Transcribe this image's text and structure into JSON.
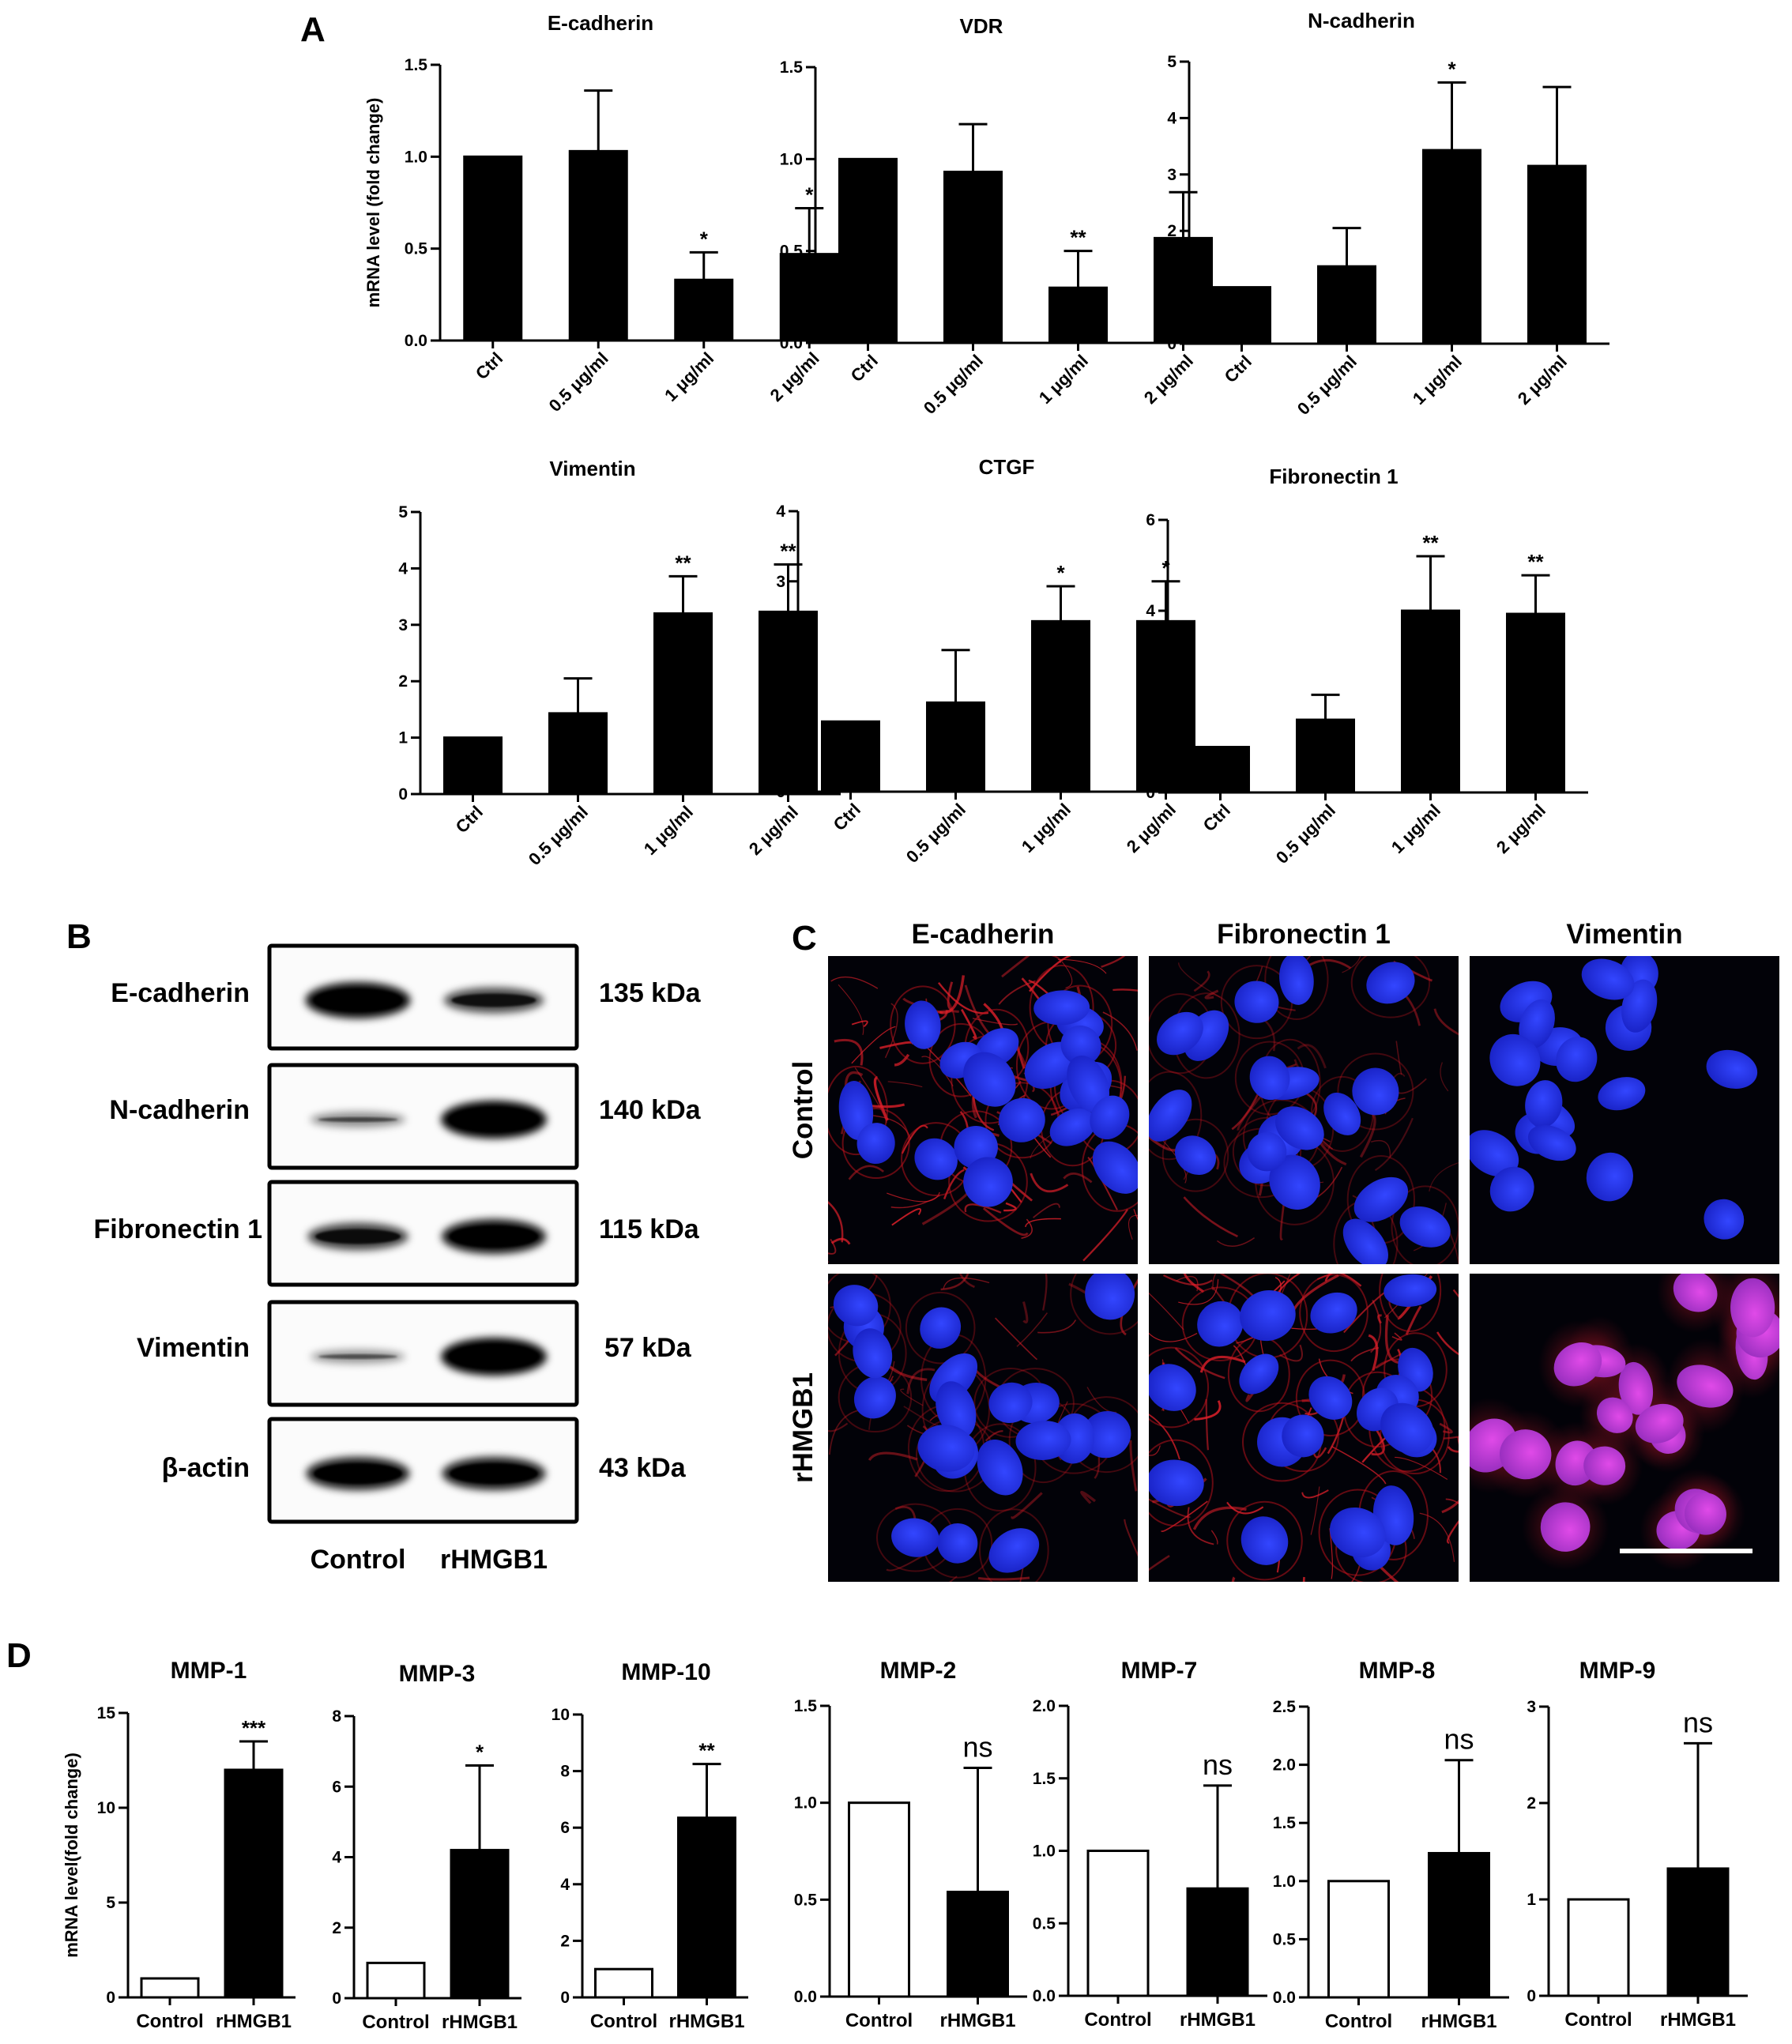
{
  "panel_labels": {
    "a": "A",
    "b": "B",
    "c": "C",
    "d": "D"
  },
  "chart_data": [
    {
      "id": "a-ecad",
      "type": "bar",
      "title": "E-cadherin",
      "ylabel": "mRNA level (fold change)",
      "categories": [
        "Ctrl",
        "0.5 μg/ml",
        "1 μg/ml",
        "2 μg/ml"
      ],
      "values": [
        1.0,
        1.03,
        0.33,
        0.47
      ],
      "errors": [
        0,
        0.33,
        0.15,
        0.25
      ],
      "significance": [
        "",
        "",
        "*",
        "*"
      ],
      "ylim": [
        0,
        1.5
      ],
      "yticks": [
        "0.0",
        "0.5",
        "1.0",
        "1.5"
      ],
      "bar_color": "#000000"
    },
    {
      "id": "a-vdr",
      "type": "bar",
      "title": "VDR",
      "ylabel": "",
      "categories": [
        "Ctrl",
        "0.5 μg/ml",
        "1 μg/ml",
        "2 μg/ml"
      ],
      "values": [
        1.0,
        0.93,
        0.3,
        0.57
      ],
      "errors": [
        0,
        0.26,
        0.2,
        0.25
      ],
      "significance": [
        "",
        "",
        "**",
        ""
      ],
      "ylim": [
        0,
        1.5
      ],
      "yticks": [
        "0.0",
        "0.5",
        "1.0",
        "1.5"
      ],
      "bar_color": "#000000"
    },
    {
      "id": "a-ncad",
      "type": "bar",
      "title": "N-cadherin",
      "ylabel": "",
      "categories": [
        "Ctrl",
        "0.5 μg/ml",
        "1 μg/ml",
        "2 μg/ml"
      ],
      "values": [
        1.0,
        1.37,
        3.43,
        3.15
      ],
      "errors": [
        0,
        0.68,
        1.2,
        1.4
      ],
      "significance": [
        "",
        "",
        "*",
        ""
      ],
      "ylim": [
        0,
        5
      ],
      "yticks": [
        "0",
        "1",
        "2",
        "3",
        "4",
        "5"
      ],
      "bar_color": "#000000"
    },
    {
      "id": "a-vim",
      "type": "bar",
      "title": "Vimentin",
      "ylabel": "",
      "categories": [
        "Ctrl",
        "0.5 μg/ml",
        "1 μg/ml",
        "2 μg/ml"
      ],
      "values": [
        1.0,
        1.43,
        3.2,
        3.23
      ],
      "errors": [
        0,
        0.62,
        0.66,
        0.84
      ],
      "significance": [
        "",
        "",
        "**",
        "**"
      ],
      "ylim": [
        0,
        5
      ],
      "yticks": [
        "0",
        "1",
        "2",
        "3",
        "4",
        "5"
      ],
      "bar_color": "#000000"
    },
    {
      "id": "a-ctgf",
      "type": "bar",
      "title": "CTGF",
      "ylabel": "",
      "categories": [
        "Ctrl",
        "0.5 μg/ml",
        "1 μg/ml",
        "2 μg/ml"
      ],
      "values": [
        1.0,
        1.27,
        2.43,
        2.43
      ],
      "errors": [
        0,
        0.75,
        0.5,
        0.57
      ],
      "significance": [
        "",
        "",
        "*",
        "*"
      ],
      "ylim": [
        0,
        4
      ],
      "yticks": [
        "0",
        "1",
        "2",
        "3",
        "4"
      ],
      "bar_color": "#000000"
    },
    {
      "id": "a-fn1",
      "type": "bar",
      "title": "Fibronectin 1",
      "ylabel": "",
      "categories": [
        "Ctrl",
        "0.5 μg/ml",
        "1 μg/ml",
        "2 μg/ml"
      ],
      "values": [
        1.0,
        1.6,
        4.0,
        3.93
      ],
      "errors": [
        0,
        0.55,
        1.2,
        0.85
      ],
      "significance": [
        "",
        "",
        "**",
        "**"
      ],
      "ylim": [
        0,
        6
      ],
      "yticks": [
        "0",
        "2",
        "4",
        "6"
      ],
      "bar_color": "#000000"
    },
    {
      "id": "d-mmp1",
      "type": "bar",
      "title": "MMP-1",
      "ylabel": "mRNA level(fold change)",
      "categories": [
        "Control",
        "rHMGB1"
      ],
      "values": [
        1.0,
        12.0
      ],
      "errors": [
        0,
        1.5
      ],
      "significance": [
        "",
        "***"
      ],
      "ylim": [
        0,
        15
      ],
      "yticks": [
        "0",
        "5",
        "10",
        "15"
      ],
      "bar_fills": [
        "#ffffff",
        "#000000"
      ]
    },
    {
      "id": "d-mmp3",
      "type": "bar",
      "title": "MMP-3",
      "ylabel": "",
      "categories": [
        "Control",
        "rHMGB1"
      ],
      "values": [
        1.0,
        4.2
      ],
      "errors": [
        0,
        2.4
      ],
      "significance": [
        "",
        "*"
      ],
      "ylim": [
        0,
        8
      ],
      "yticks": [
        "0",
        "2",
        "4",
        "6",
        "8"
      ],
      "bar_fills": [
        "#ffffff",
        "#000000"
      ]
    },
    {
      "id": "d-mmp10",
      "type": "bar",
      "title": "MMP-10",
      "ylabel": "",
      "categories": [
        "Control",
        "rHMGB1"
      ],
      "values": [
        1.0,
        6.35
      ],
      "errors": [
        0,
        1.9
      ],
      "significance": [
        "",
        "**"
      ],
      "ylim": [
        0,
        10
      ],
      "yticks": [
        "0",
        "2",
        "4",
        "6",
        "8",
        "10"
      ],
      "bar_fills": [
        "#ffffff",
        "#000000"
      ]
    },
    {
      "id": "d-mmp2",
      "type": "bar",
      "title": "MMP-2",
      "ylabel": "",
      "categories": [
        "Control",
        "rHMGB1"
      ],
      "values": [
        1.0,
        0.54
      ],
      "errors": [
        0,
        0.64
      ],
      "significance": [
        "",
        "ns"
      ],
      "ylim": [
        0,
        1.5
      ],
      "yticks": [
        "0.0",
        "0.5",
        "1.0",
        "1.5"
      ],
      "bar_fills": [
        "#ffffff",
        "#000000"
      ]
    },
    {
      "id": "d-mmp7",
      "type": "bar",
      "title": "MMP-7",
      "ylabel": "",
      "categories": [
        "Control",
        "rHMGB1"
      ],
      "values": [
        1.0,
        0.74
      ],
      "errors": [
        0,
        0.71
      ],
      "significance": [
        "",
        "ns"
      ],
      "ylim": [
        0,
        2.0
      ],
      "yticks": [
        "0.0",
        "0.5",
        "1.0",
        "1.5",
        "2.0"
      ],
      "bar_fills": [
        "#ffffff",
        "#000000"
      ]
    },
    {
      "id": "d-mmp8",
      "type": "bar",
      "title": "MMP-8",
      "ylabel": "",
      "categories": [
        "Control",
        "rHMGB1"
      ],
      "values": [
        1.0,
        1.24
      ],
      "errors": [
        0,
        0.8
      ],
      "significance": [
        "",
        "ns"
      ],
      "ylim": [
        0,
        2.5
      ],
      "yticks": [
        "0.0",
        "0.5",
        "1.0",
        "1.5",
        "2.0",
        "2.5"
      ],
      "bar_fills": [
        "#ffffff",
        "#000000"
      ]
    },
    {
      "id": "d-mmp9",
      "type": "bar",
      "title": "MMP-9",
      "ylabel": "",
      "categories": [
        "Control",
        "rHMGB1"
      ],
      "values": [
        1.0,
        1.32
      ],
      "errors": [
        0,
        1.3
      ],
      "significance": [
        "",
        "ns"
      ],
      "ylim": [
        0,
        3
      ],
      "yticks": [
        "0",
        "1",
        "2",
        "3"
      ],
      "bar_fills": [
        "#ffffff",
        "#000000"
      ]
    }
  ],
  "western_blot": {
    "rows": [
      {
        "protein": "E-cadherin",
        "mw": "135 kDa",
        "band_intensity": [
          0.95,
          0.6
        ]
      },
      {
        "protein": "N-cadherin",
        "mw": "140 kDa",
        "band_intensity": [
          0.25,
          1.0
        ]
      },
      {
        "protein": "Fibronectin 1",
        "mw": "115 kDa",
        "band_intensity": [
          0.65,
          0.9
        ]
      },
      {
        "protein": "Vimentin",
        "mw": "57 kDa",
        "band_intensity": [
          0.2,
          1.0
        ]
      },
      {
        "protein": "β-actin",
        "mw": "43 kDa",
        "band_intensity": [
          0.85,
          0.85
        ]
      }
    ],
    "lanes": [
      "Control",
      "rHMGB1"
    ]
  },
  "immunofluorescence": {
    "columns": [
      "E-cadherin",
      "Fibronectin 1",
      "Vimentin"
    ],
    "rows": [
      "Control",
      "rHMGB1"
    ],
    "nucleus_color": "#1f2fe0",
    "marker_color": "#d01818",
    "background_color": "#020208"
  }
}
